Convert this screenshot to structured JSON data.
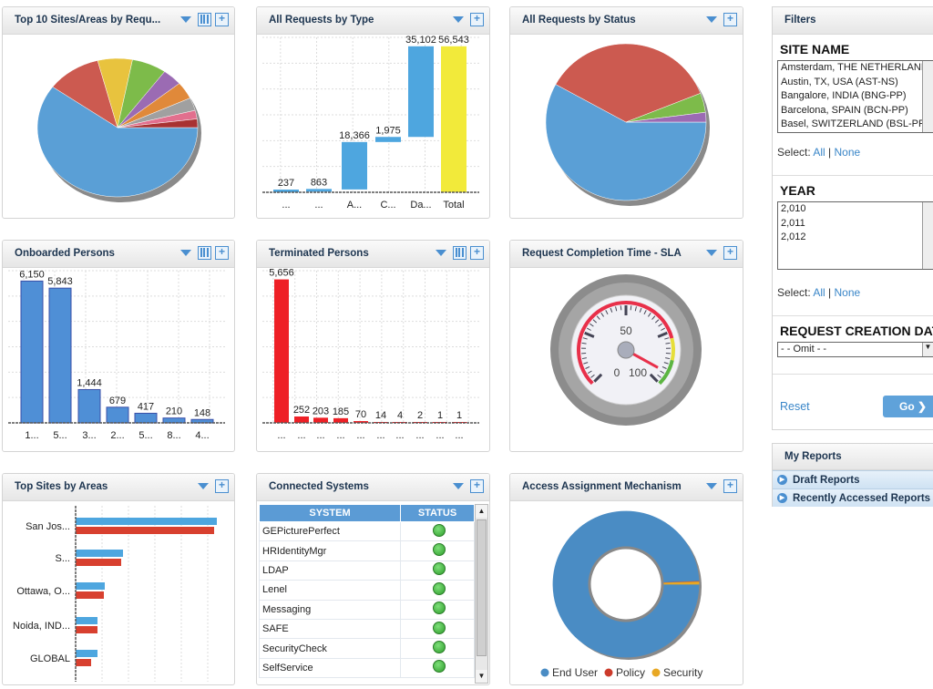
{
  "panels": {
    "top10": {
      "title": "Top 10 Sites/Areas by Requ..."
    },
    "by_type": {
      "title": "All Requests by Type"
    },
    "by_status": {
      "title": "All Requests by Status"
    },
    "onboarded": {
      "title": "Onboarded Persons"
    },
    "terminated": {
      "title": "Terminated Persons"
    },
    "sla": {
      "title": "Request Completion Time - SLA"
    },
    "top_sites": {
      "title": "Top Sites by Areas"
    },
    "connected": {
      "title": "Connected Systems"
    },
    "access": {
      "title": "Access Assignment Mechanism"
    }
  },
  "icons": {
    "dropdown": "triangle-down-icon",
    "columns": "columns-icon",
    "add": "plus-box-icon",
    "plus": "+"
  },
  "connected_systems": {
    "headers": [
      "SYSTEM",
      "STATUS"
    ],
    "rows": [
      {
        "system": "GEPicturePerfect",
        "status": "green"
      },
      {
        "system": "HRIdentityMgr",
        "status": "green"
      },
      {
        "system": "LDAP",
        "status": "green"
      },
      {
        "system": "Lenel",
        "status": "green"
      },
      {
        "system": "Messaging",
        "status": "green"
      },
      {
        "system": "SAFE",
        "status": "green"
      },
      {
        "system": "SecurityCheck",
        "status": "green"
      },
      {
        "system": "SelfService",
        "status": "green"
      }
    ]
  },
  "filters": {
    "title": "Filters",
    "site_name": {
      "label": "SITE NAME",
      "options": [
        "Amsterdam, THE NETHERLANDS",
        "Austin, TX, USA (AST-NS)",
        "Bangalore, INDIA (BNG-PP)",
        "Barcelona, SPAIN (BCN-PP)",
        "Basel, SWITZERLAND (BSL-PP)"
      ]
    },
    "year": {
      "label": "YEAR",
      "options": [
        "2,010",
        "2,011",
        "2,012"
      ]
    },
    "select_label": "Select:",
    "all": "All",
    "sep": "|",
    "none": "None",
    "creation_date": {
      "label": "REQUEST CREATION DATE",
      "value": "- - Omit - -"
    },
    "reset": "Reset",
    "go": "Go",
    "arrow_up": "▲",
    "arrow_down": "▼",
    "chevron": "❯"
  },
  "my_reports": {
    "title": "My Reports",
    "items": [
      "Draft Reports",
      "Recently Accessed Reports"
    ],
    "bullet": "▶"
  },
  "chart_data": [
    {
      "type": "pie",
      "style": "3d-tilted",
      "values": [
        60,
        11,
        7,
        7,
        4,
        4,
        3,
        2,
        2
      ],
      "colors": [
        "#5a9fd6",
        "#cc5a50",
        "#e8c33e",
        "#7dbb4a",
        "#9b6bb3",
        "#e0893a",
        "#a0a0a0",
        "#e26f8e",
        "#a83232"
      ]
    },
    {
      "type": "waterfall",
      "categories": [
        "...",
        "...",
        "A...",
        "C...",
        "Da...",
        "Total"
      ],
      "values": [
        237,
        863,
        18366,
        1975,
        35102,
        56543
      ],
      "value_labels": [
        "237",
        "863",
        "18,366",
        "1,975",
        "35,102",
        "56,543"
      ],
      "colors": {
        "step": "#4ea6df",
        "total": "#f2ea3a"
      },
      "ylim": [
        0,
        60000
      ],
      "grid": true
    },
    {
      "type": "pie",
      "style": "3d-tilted",
      "values": [
        58,
        36,
        4,
        2
      ],
      "colors": [
        "#5a9fd6",
        "#cc5a50",
        "#7dbb4a",
        "#9b6bb3"
      ]
    },
    {
      "type": "bar",
      "categories": [
        "1...",
        "5...",
        "3...",
        "2...",
        "5...",
        "8...",
        "4..."
      ],
      "values": [
        6150,
        5843,
        1444,
        679,
        417,
        210,
        148
      ],
      "value_labels": [
        "6,150",
        "5,843",
        "1,444",
        "679",
        "417",
        "210",
        "148"
      ],
      "color": "#4f8fd6",
      "ylim": [
        0,
        6600
      ],
      "grid": true
    },
    {
      "type": "bar",
      "categories": [
        "...",
        "...",
        "...",
        "...",
        "...",
        "...",
        "...",
        "...",
        "...",
        "..."
      ],
      "values": [
        5656,
        252,
        203,
        185,
        70,
        14,
        4,
        2,
        1,
        1
      ],
      "value_labels": [
        "5,656",
        "252",
        "203",
        "185",
        "70",
        "14",
        "4",
        "2",
        "1",
        "1"
      ],
      "color": "#ee2026",
      "ylim": [
        0,
        6000
      ],
      "grid": true
    },
    {
      "type": "gauge",
      "min": 0,
      "max": 100,
      "value": 94,
      "tick_labels": [
        "0",
        "50",
        "100"
      ],
      "bands": [
        {
          "from": 0,
          "to": 78,
          "color": "#e8304a"
        },
        {
          "from": 78,
          "to": 88,
          "color": "#e6de3a"
        },
        {
          "from": 88,
          "to": 100,
          "color": "#5cb542"
        }
      ]
    },
    {
      "type": "hbar",
      "categories": [
        "San Jos...",
        "S...",
        "Ottawa, O...",
        "Noida, IND...",
        "GLOBAL"
      ],
      "series": [
        {
          "values": [
            155,
            52,
            32,
            24,
            24
          ],
          "color": "#4ea6df"
        },
        {
          "values": [
            152,
            50,
            31,
            24,
            17
          ],
          "color": "#d8402f"
        }
      ],
      "xlim": [
        0,
        180
      ],
      "grid": true
    },
    {
      "type": "donut",
      "series": [
        {
          "name": "End User",
          "value": 99.4,
          "color": "#4a8cc4"
        },
        {
          "name": "Policy",
          "value": 0.1,
          "color": "#cc3b2b"
        },
        {
          "name": "Security",
          "value": 0.5,
          "color": "#e8a824"
        }
      ],
      "legend": "bottom"
    }
  ]
}
